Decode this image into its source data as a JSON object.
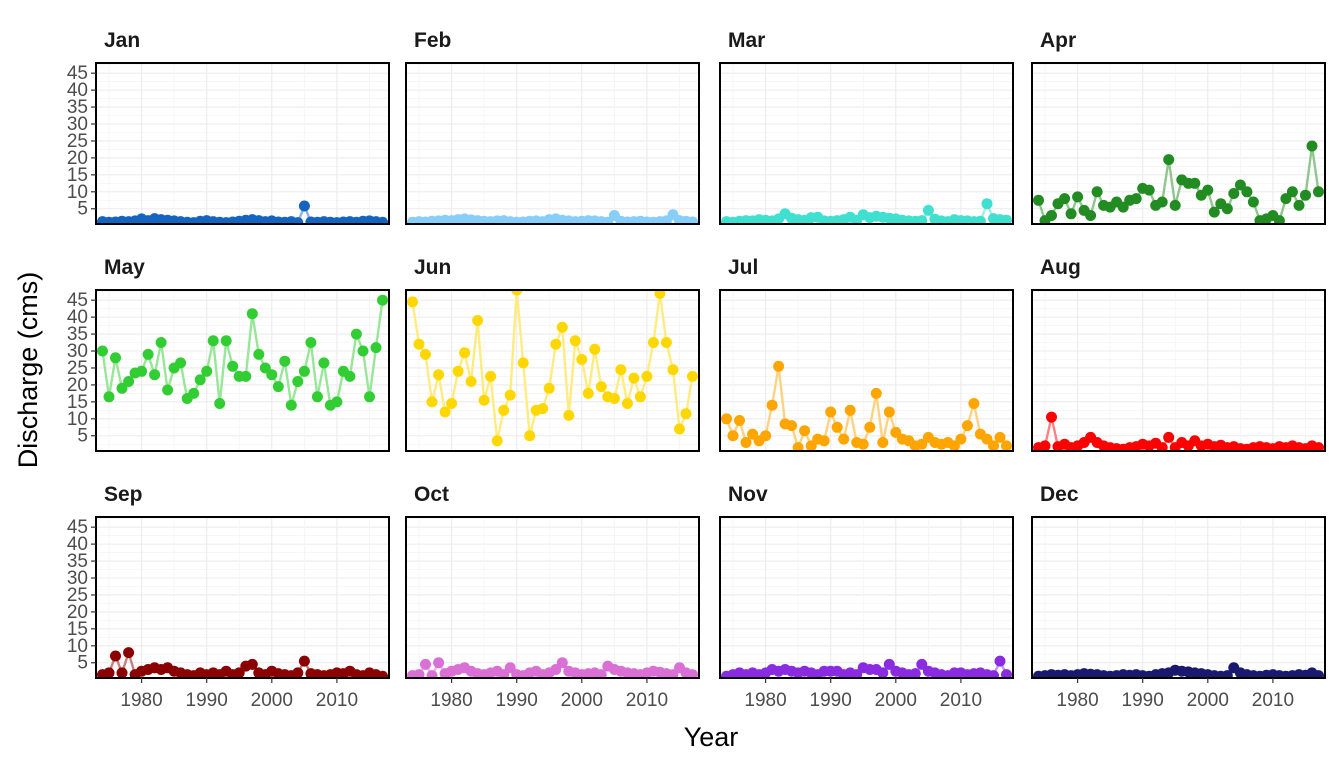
{
  "chart_data": {
    "type": "line",
    "xlabel": "Year",
    "ylabel": "Discharge (cms)",
    "xlim": [
      1973,
      2018
    ],
    "ylim": [
      0.5,
      48
    ],
    "x_ticks": [
      1980,
      1990,
      2000,
      2010
    ],
    "x_tick_labels": [
      "1980",
      "1990",
      "2000",
      "2010"
    ],
    "y_ticks": [
      5,
      10,
      15,
      20,
      25,
      30,
      35,
      40,
      45
    ],
    "y_tick_labels": [
      "5",
      "10",
      "15",
      "20",
      "25",
      "30",
      "35",
      "40",
      "45"
    ],
    "grid": true,
    "legend": "none",
    "x": [
      1974,
      1975,
      1976,
      1977,
      1978,
      1979,
      1980,
      1981,
      1982,
      1983,
      1984,
      1985,
      1986,
      1987,
      1988,
      1989,
      1990,
      1991,
      1992,
      1993,
      1994,
      1995,
      1996,
      1997,
      1998,
      1999,
      2000,
      2001,
      2002,
      2003,
      2004,
      2005,
      2006,
      2007,
      2008,
      2009,
      2010,
      2011,
      2012,
      2013,
      2014,
      2015,
      2016,
      2017
    ],
    "facets": [
      {
        "name": "Jan",
        "color": "#1565c0",
        "line_color": "#8fb2e0",
        "values": [
          1.2,
          1.0,
          1.1,
          1.3,
          1.2,
          1.4,
          2.0,
          1.5,
          2.1,
          1.8,
          1.6,
          1.4,
          1.2,
          1.0,
          0.9,
          1.3,
          1.5,
          1.2,
          1.0,
          0.9,
          1.1,
          1.3,
          1.6,
          1.8,
          1.5,
          1.2,
          1.4,
          1.1,
          1.0,
          1.2,
          0.9,
          5.8,
          1.1,
          1.0,
          1.2,
          1.0,
          0.9,
          1.1,
          1.2,
          1.0,
          1.3,
          1.4,
          1.2,
          1.0
        ]
      },
      {
        "name": "Feb",
        "color": "#87cefa",
        "line_color": "#c3e6fc",
        "values": [
          1.0,
          1.2,
          1.1,
          1.3,
          1.4,
          1.6,
          1.5,
          1.8,
          2.0,
          1.7,
          1.5,
          1.3,
          1.2,
          1.4,
          1.5,
          1.2,
          1.0,
          1.1,
          1.3,
          1.4,
          1.2,
          1.8,
          2.0,
          1.6,
          1.4,
          1.2,
          1.3,
          1.5,
          1.4,
          1.2,
          1.0,
          3.0,
          1.3,
          1.1,
          1.2,
          1.3,
          1.1,
          1.0,
          1.2,
          1.4,
          3.2,
          1.5,
          1.3,
          1.1
        ]
      },
      {
        "name": "Mar",
        "color": "#40e0d0",
        "line_color": "#a0efe7",
        "values": [
          1.2,
          1.0,
          1.3,
          1.5,
          1.4,
          1.8,
          1.6,
          1.4,
          2.0,
          3.5,
          2.2,
          1.8,
          1.6,
          2.4,
          2.5,
          1.4,
          1.3,
          1.5,
          1.8,
          2.5,
          1.6,
          3.2,
          2.4,
          2.8,
          2.5,
          2.2,
          2.0,
          1.6,
          1.4,
          1.3,
          1.5,
          4.5,
          1.9,
          1.4,
          1.2,
          1.8,
          1.5,
          1.4,
          1.2,
          1.3,
          6.5,
          2.1,
          1.8,
          1.6
        ]
      },
      {
        "name": "Apr",
        "color": "#228b22",
        "line_color": "#90c590",
        "values": [
          7.5,
          1.5,
          3.0,
          6.5,
          8.0,
          3.5,
          8.5,
          4.5,
          3.0,
          10.0,
          6.0,
          5.5,
          7.0,
          5.5,
          7.5,
          8.0,
          11.0,
          10.5,
          6.0,
          7.0,
          19.5,
          6.0,
          13.5,
          12.5,
          12.5,
          9.0,
          10.5,
          4.0,
          6.5,
          5.0,
          9.5,
          12.0,
          10.0,
          7.0,
          1.5,
          2.0,
          3.0,
          1.5,
          8.0,
          10.0,
          6.0,
          9.0,
          23.5,
          10.0
        ]
      },
      {
        "name": "May",
        "color": "#32cd32",
        "line_color": "#98e698",
        "values": [
          30.0,
          16.5,
          28.0,
          19.0,
          21.0,
          23.5,
          24.0,
          29.0,
          23.0,
          32.5,
          18.5,
          25.0,
          26.5,
          16.0,
          17.5,
          21.5,
          24.0,
          33.0,
          14.5,
          33.0,
          25.5,
          22.5,
          22.5,
          41.0,
          29.0,
          25.0,
          23.0,
          19.5,
          27.0,
          14.0,
          21.0,
          24.0,
          32.5,
          16.5,
          26.5,
          14.0,
          15.0,
          24.0,
          22.5,
          35.0,
          30.0,
          16.5,
          31.0,
          45.0
        ]
      },
      {
        "name": "Jun",
        "color": "#ffd700",
        "line_color": "#ffeb80",
        "values": [
          44.5,
          32.0,
          29.0,
          15.0,
          23.0,
          12.0,
          14.5,
          24.0,
          29.5,
          21.0,
          39.0,
          15.5,
          22.5,
          3.5,
          12.5,
          17.0,
          48.0,
          26.5,
          5.0,
          12.5,
          13.0,
          19.0,
          32.0,
          37.0,
          11.0,
          33.0,
          27.5,
          17.5,
          30.5,
          19.5,
          16.5,
          16.0,
          24.5,
          14.5,
          22.0,
          16.5,
          22.5,
          32.5,
          47.0,
          32.5,
          24.5,
          7.0,
          11.5,
          22.5
        ]
      },
      {
        "name": "Jul",
        "color": "#ffa500",
        "line_color": "#ffd280",
        "values": [
          10.0,
          5.0,
          9.5,
          3.0,
          5.5,
          3.5,
          5.0,
          14.0,
          25.5,
          8.5,
          8.0,
          1.5,
          6.5,
          2.0,
          4.0,
          3.5,
          12.0,
          7.5,
          4.0,
          12.5,
          3.0,
          2.5,
          7.5,
          17.5,
          3.0,
          12.0,
          6.0,
          4.0,
          3.5,
          2.0,
          2.5,
          4.5,
          3.0,
          2.5,
          3.0,
          2.0,
          4.0,
          8.0,
          14.5,
          5.5,
          4.0,
          2.0,
          4.5,
          2.0
        ]
      },
      {
        "name": "Aug",
        "color": "#ff0000",
        "line_color": "#ff8080",
        "values": [
          1.5,
          2.0,
          10.5,
          1.8,
          2.5,
          1.5,
          2.0,
          3.0,
          4.5,
          3.0,
          2.0,
          1.5,
          1.2,
          1.0,
          1.5,
          1.8,
          2.5,
          2.0,
          2.8,
          1.5,
          4.5,
          1.5,
          3.0,
          2.0,
          3.5,
          2.0,
          2.5,
          1.8,
          2.2,
          1.5,
          1.8,
          1.2,
          1.0,
          1.5,
          1.8,
          1.5,
          1.2,
          1.8,
          1.5,
          2.0,
          1.5,
          1.2,
          2.0,
          1.5
        ]
      },
      {
        "name": "Sep",
        "color": "#8b0000",
        "line_color": "#c58080",
        "values": [
          1.5,
          2.0,
          7.0,
          2.0,
          8.0,
          1.5,
          2.5,
          3.0,
          3.5,
          3.0,
          3.5,
          2.5,
          2.0,
          1.5,
          1.2,
          2.0,
          1.5,
          2.0,
          1.5,
          2.5,
          1.5,
          2.0,
          4.0,
          4.5,
          2.0,
          1.5,
          2.5,
          1.8,
          1.5,
          1.2,
          2.0,
          5.5,
          1.8,
          1.5,
          1.2,
          1.5,
          2.0,
          1.8,
          2.5,
          1.5,
          1.2,
          2.0,
          1.5,
          1.0
        ]
      },
      {
        "name": "Oct",
        "color": "#da70d6",
        "line_color": "#ecb7ea",
        "values": [
          1.2,
          1.5,
          4.5,
          1.2,
          5.0,
          1.8,
          2.5,
          3.0,
          3.5,
          2.5,
          1.8,
          1.5,
          2.0,
          2.5,
          1.5,
          3.5,
          1.5,
          1.2,
          2.0,
          2.5,
          1.5,
          2.0,
          3.0,
          5.0,
          2.5,
          2.0,
          1.5,
          1.8,
          2.0,
          1.5,
          4.0,
          3.0,
          2.5,
          2.0,
          1.8,
          1.5,
          2.0,
          2.5,
          2.2,
          1.8,
          1.5,
          3.5,
          2.0,
          1.5
        ]
      },
      {
        "name": "Nov",
        "color": "#8a2be2",
        "line_color": "#c495f0",
        "values": [
          1.0,
          1.5,
          2.0,
          1.5,
          2.0,
          1.5,
          2.0,
          3.0,
          2.5,
          3.0,
          2.5,
          2.0,
          2.5,
          2.0,
          1.5,
          2.5,
          2.5,
          2.5,
          1.5,
          2.0,
          1.5,
          3.5,
          3.0,
          3.0,
          2.0,
          4.5,
          2.5,
          2.0,
          1.5,
          1.8,
          4.5,
          2.5,
          2.0,
          1.5,
          1.2,
          2.0,
          2.0,
          1.5,
          1.8,
          2.0,
          1.5,
          1.2,
          5.5,
          1.5
        ]
      },
      {
        "name": "Dec",
        "color": "#191970",
        "line_color": "#8c8cb8",
        "values": [
          1.0,
          1.2,
          1.5,
          1.3,
          1.5,
          1.2,
          1.5,
          1.8,
          1.6,
          1.5,
          1.2,
          1.0,
          1.2,
          1.5,
          1.3,
          1.5,
          1.2,
          1.0,
          1.5,
          1.8,
          2.0,
          2.8,
          2.5,
          2.3,
          2.0,
          1.8,
          1.5,
          1.2,
          1.0,
          1.2,
          3.5,
          2.0,
          1.5,
          1.2,
          1.0,
          1.3,
          1.5,
          1.2,
          1.0,
          1.2,
          1.5,
          1.3,
          2.0,
          1.2
        ]
      }
    ]
  }
}
